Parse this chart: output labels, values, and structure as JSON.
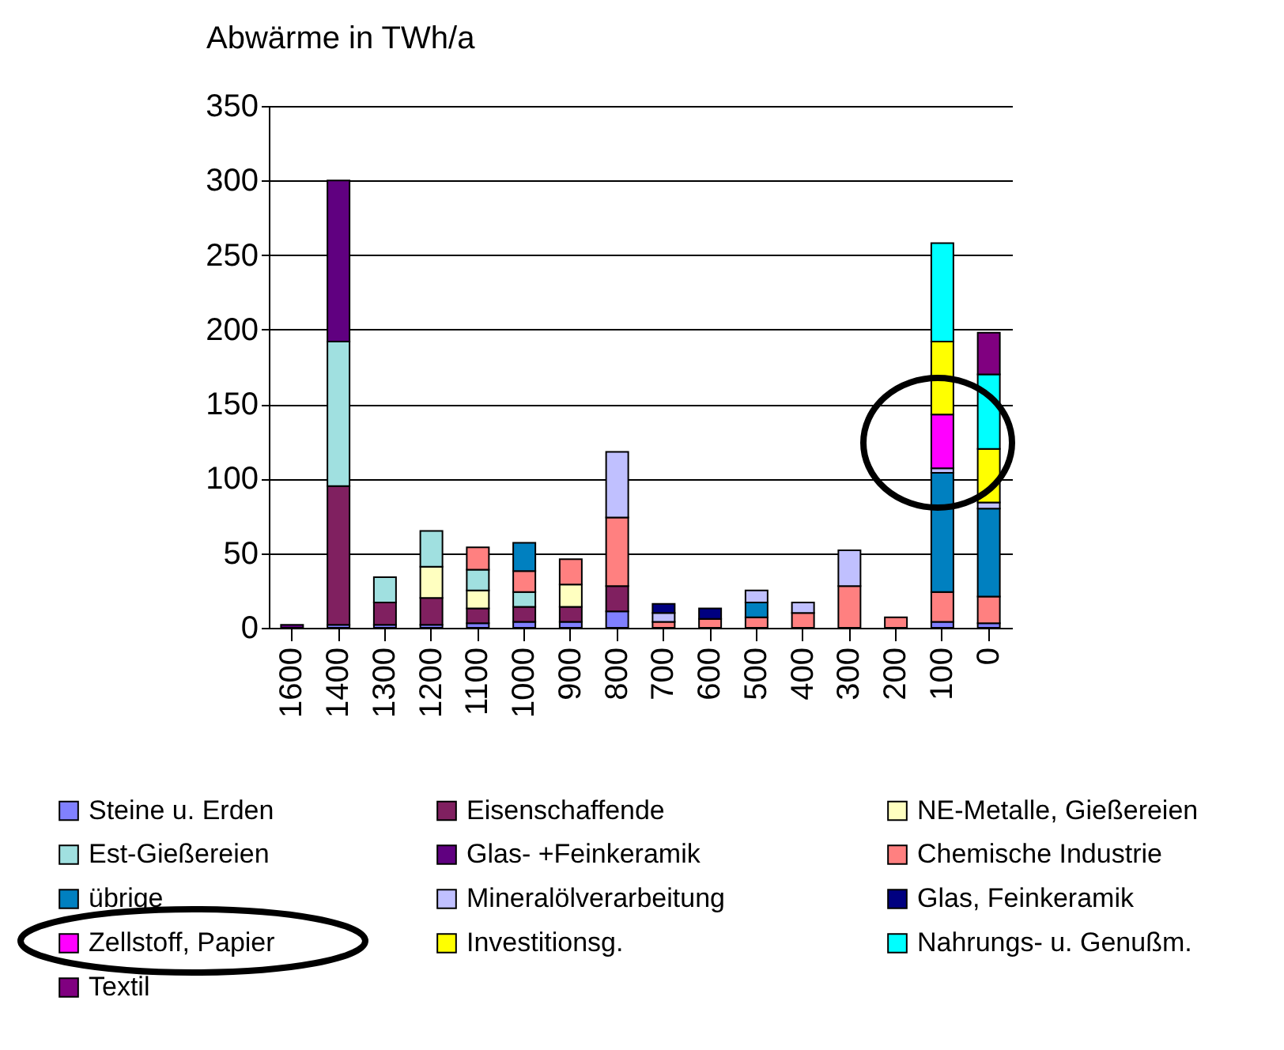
{
  "chart_data": {
    "type": "bar",
    "stacked": true,
    "ylabel": "Abwärme in TWh/a",
    "categories": [
      "1600",
      "1400",
      "1300",
      "1200",
      "1100",
      "1000",
      "900",
      "800",
      "700",
      "600",
      "500",
      "400",
      "300",
      "200",
      "100",
      "0"
    ],
    "ylim": [
      0,
      350
    ],
    "yticks": [
      0,
      50,
      100,
      150,
      200,
      250,
      300,
      350
    ],
    "grid": "y",
    "legend": "bottom",
    "series": [
      {
        "name": "Steine u. Erden",
        "color": "#8080ff",
        "values": [
          null,
          2,
          2,
          2,
          3,
          4,
          4,
          11,
          null,
          null,
          null,
          null,
          null,
          null,
          4,
          3
        ]
      },
      {
        "name": "Eisenschaffende",
        "color": "#802060",
        "values": [
          null,
          93,
          15,
          18,
          10,
          10,
          10,
          17,
          null,
          null,
          null,
          null,
          null,
          null,
          null,
          null
        ]
      },
      {
        "name": "NE-Metalle, Gießereien",
        "color": "#ffffc0",
        "values": [
          null,
          null,
          null,
          21,
          12,
          null,
          15,
          null,
          null,
          null,
          null,
          null,
          null,
          null,
          null,
          null
        ]
      },
      {
        "name": "Est-Gießereien",
        "color": "#a0e0e0",
        "values": [
          null,
          97,
          17,
          24,
          14,
          10,
          null,
          null,
          null,
          null,
          null,
          null,
          null,
          null,
          null,
          null
        ]
      },
      {
        "name": "Glas- +Feinkeramik",
        "color": "#600080",
        "values": [
          2,
          108,
          null,
          null,
          null,
          null,
          null,
          null,
          null,
          null,
          null,
          null,
          null,
          null,
          null,
          null
        ]
      },
      {
        "name": "Chemische Industrie",
        "color": "#ff8080",
        "values": [
          null,
          null,
          null,
          null,
          15,
          14,
          17,
          46,
          4,
          6,
          7,
          10,
          28,
          7,
          20,
          18
        ]
      },
      {
        "name": "übrige",
        "color": "#0080c0",
        "values": [
          null,
          null,
          null,
          null,
          null,
          19,
          null,
          null,
          null,
          null,
          10,
          null,
          null,
          null,
          80,
          59
        ]
      },
      {
        "name": "Mineralölverarbeitung",
        "color": "#c0c0ff",
        "values": [
          null,
          null,
          null,
          null,
          null,
          null,
          null,
          44,
          6,
          null,
          8,
          7,
          24,
          null,
          3,
          4
        ]
      },
      {
        "name": "Glas, Feinkeramik",
        "color": "#000080",
        "values": [
          null,
          null,
          null,
          null,
          null,
          null,
          null,
          null,
          6,
          7,
          null,
          null,
          null,
          null,
          null,
          null
        ]
      },
      {
        "name": "Zellstoff, Papier",
        "color": "#ff00ff",
        "values": [
          null,
          null,
          null,
          null,
          null,
          null,
          null,
          null,
          null,
          null,
          null,
          null,
          null,
          null,
          36,
          null
        ]
      },
      {
        "name": "Investitionsg.",
        "color": "#ffff00",
        "values": [
          null,
          null,
          null,
          null,
          null,
          null,
          null,
          null,
          null,
          null,
          null,
          null,
          null,
          null,
          49,
          36
        ]
      },
      {
        "name": "Nahrungs- u. Genußm.",
        "color": "#00ffff",
        "values": [
          null,
          null,
          null,
          null,
          null,
          null,
          null,
          null,
          null,
          null,
          null,
          null,
          null,
          null,
          66,
          50
        ]
      },
      {
        "name": "Textil",
        "color": "#800080",
        "values": [
          null,
          null,
          null,
          null,
          null,
          null,
          null,
          null,
          null,
          null,
          null,
          null,
          null,
          null,
          null,
          28
        ]
      }
    ]
  }
}
